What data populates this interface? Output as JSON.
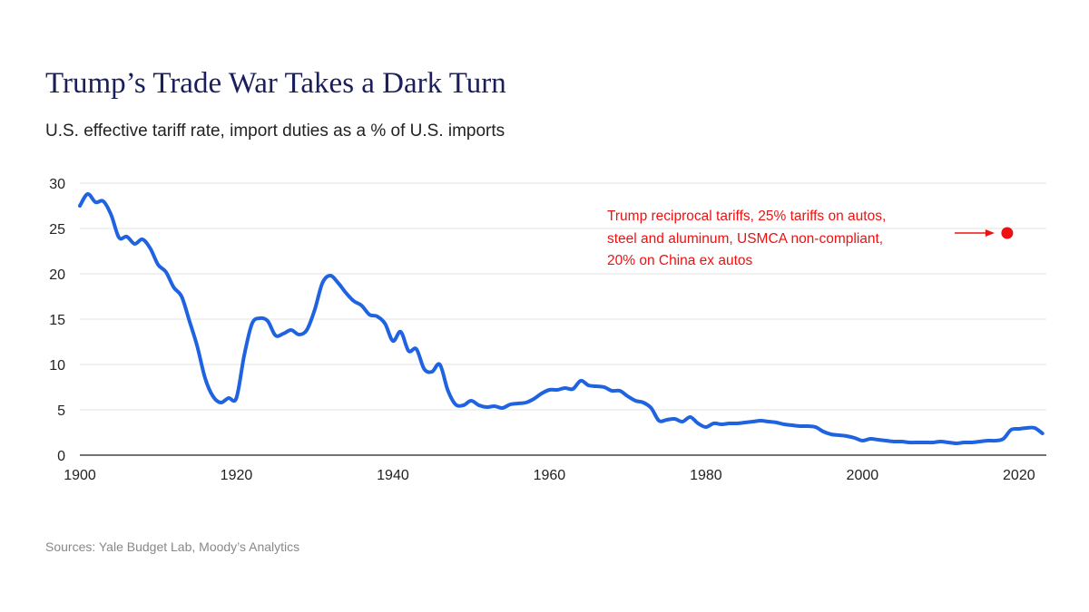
{
  "header": {
    "title": "Trump’s Trade War Takes a Dark Turn",
    "subtitle": "U.S. effective tariff rate, import duties as a % of U.S. imports"
  },
  "footer": {
    "source": "Sources: Yale Budget Lab, Moody’s Analytics"
  },
  "chart_data": {
    "type": "line",
    "title": "Trump’s Trade War Takes a Dark Turn",
    "subtitle": "U.S. effective tariff rate, import duties as a % of U.S. imports",
    "xlim": [
      1900,
      2023.5
    ],
    "ylim": [
      0,
      30
    ],
    "x_ticks": [
      1900,
      1920,
      1940,
      1960,
      1980,
      2000,
      2020
    ],
    "y_ticks": [
      0,
      5,
      10,
      15,
      20,
      25,
      30
    ],
    "grid": "horizontal",
    "colors": {
      "series": "#1f63e0",
      "annotation": "#ee1111",
      "grid": "#e3e3e3",
      "axis": "#222222"
    },
    "series": [
      {
        "x": [
          1900,
          1901,
          1902,
          1903,
          1904,
          1905,
          1906,
          1907,
          1908,
          1909,
          1910,
          1911,
          1912,
          1913,
          1914,
          1915,
          1916,
          1917,
          1918,
          1919,
          1920,
          1921,
          1922,
          1923,
          1924,
          1925,
          1926,
          1927,
          1928,
          1929,
          1930,
          1931,
          1932,
          1933,
          1934,
          1935,
          1936,
          1937,
          1938,
          1939,
          1940,
          1941,
          1942,
          1943,
          1944,
          1945,
          1946,
          1947,
          1948,
          1949,
          1950,
          1951,
          1952,
          1953,
          1954,
          1955,
          1956,
          1957,
          1958,
          1959,
          1960,
          1961,
          1962,
          1963,
          1964,
          1965,
          1966,
          1967,
          1968,
          1969,
          1970,
          1971,
          1972,
          1973,
          1974,
          1975,
          1976,
          1977,
          1978,
          1979,
          1980,
          1981,
          1982,
          1983,
          1984,
          1985,
          1986,
          1987,
          1988,
          1989,
          1990,
          1991,
          1992,
          1993,
          1994,
          1995,
          1996,
          1997,
          1998,
          1999,
          2000,
          2001,
          2002,
          2003,
          2004,
          2005,
          2006,
          2007,
          2008,
          2009,
          2010,
          2011,
          2012,
          2013,
          2014,
          2015,
          2016,
          2017,
          2018,
          2019,
          2020,
          2021,
          2022,
          2023
        ],
        "values": [
          27.5,
          28.8,
          27.9,
          28.0,
          26.5,
          24.0,
          24.1,
          23.3,
          23.8,
          22.8,
          21.0,
          20.2,
          18.5,
          17.5,
          14.8,
          12.0,
          8.5,
          6.5,
          5.8,
          6.3,
          6.3,
          11.0,
          14.5,
          15.1,
          14.8,
          13.2,
          13.4,
          13.8,
          13.3,
          13.8,
          16.0,
          19.0,
          19.8,
          19.0,
          17.9,
          17.0,
          16.5,
          15.5,
          15.3,
          14.5,
          12.6,
          13.6,
          11.5,
          11.7,
          9.5,
          9.2,
          10.0,
          7.2,
          5.6,
          5.5,
          6.0,
          5.5,
          5.3,
          5.4,
          5.2,
          5.6,
          5.7,
          5.8,
          6.2,
          6.8,
          7.2,
          7.2,
          7.4,
          7.3,
          8.2,
          7.7,
          7.6,
          7.5,
          7.1,
          7.1,
          6.5,
          6.0,
          5.8,
          5.2,
          3.8,
          3.9,
          4.0,
          3.7,
          4.2,
          3.5,
          3.1,
          3.5,
          3.4,
          3.5,
          3.5,
          3.6,
          3.7,
          3.8,
          3.7,
          3.6,
          3.4,
          3.3,
          3.2,
          3.2,
          3.1,
          2.6,
          2.3,
          2.2,
          2.1,
          1.9,
          1.6,
          1.8,
          1.7,
          1.6,
          1.5,
          1.5,
          1.4,
          1.4,
          1.4,
          1.4,
          1.5,
          1.4,
          1.3,
          1.4,
          1.4,
          1.5,
          1.6,
          1.6,
          1.8,
          2.8,
          2.9,
          3.0,
          3.0,
          2.4
        ]
      }
    ],
    "annotation": {
      "lines": [
        "Trump reciprocal tariffs, 25% tariffs on autos,",
        "steel and aluminum, USMCA non-compliant,",
        "20% on China ex autos"
      ],
      "point": {
        "x": 2018.5,
        "y": 24.5
      }
    }
  }
}
